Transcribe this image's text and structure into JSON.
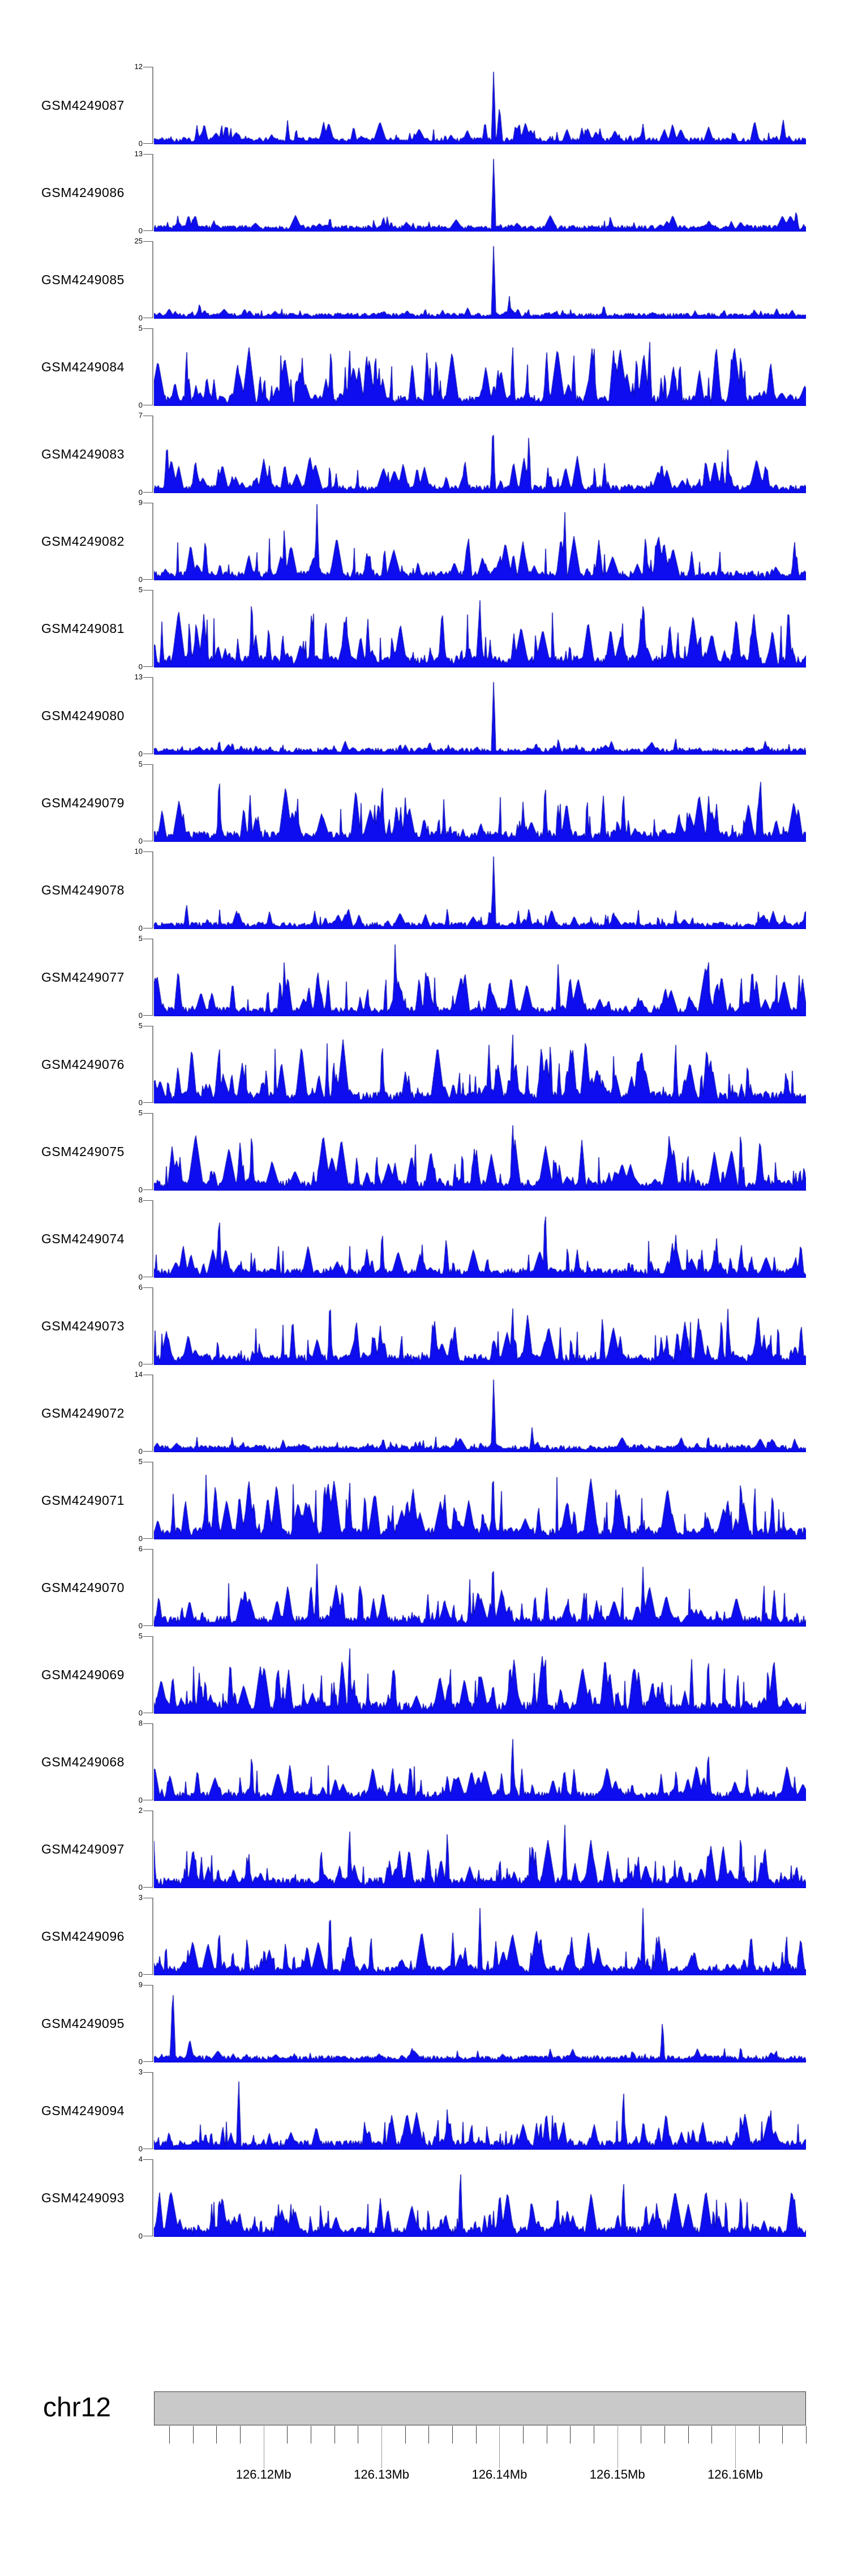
{
  "chart_data": {
    "type": "area",
    "title": "",
    "description": "Stacked genomic signal coverage tracks (GEO GSM samples) over chr12:126.11-126.17Mb",
    "zero_label": "0",
    "signal_color": "#0d0df0",
    "signal_edge_color": "#0000a8",
    "axis_color": "#8c8c8c",
    "ideogram_fill": "#c9c9c9",
    "region": {
      "chrom": "chr12",
      "start_mb": 126.1107,
      "end_mb": 126.166
    },
    "panels": [
      {
        "label": "GSM4249087",
        "ymax": 12,
        "seed": 101,
        "count": 115,
        "typ": 0.22,
        "base": 0.05,
        "peaks": [
          {
            "x": 0.521,
            "h": 1,
            "w": 4
          },
          {
            "x": 0.53,
            "h": 0.5,
            "w": 6
          },
          {
            "x": 0.56,
            "h": 0.3,
            "w": 5
          },
          {
            "x": 0.205,
            "h": 0.32,
            "w": 4
          },
          {
            "x": 0.112,
            "h": 0.28,
            "w": 4
          },
          {
            "x": 0.75,
            "h": 0.26,
            "w": 5
          },
          {
            "x": 0.965,
            "h": 0.33,
            "w": 6
          }
        ]
      },
      {
        "label": "GSM4249086",
        "ymax": 13,
        "seed": 202,
        "count": 115,
        "typ": 0.16,
        "base": 0.045,
        "peaks": [
          {
            "x": 0.521,
            "h": 1,
            "w": 4
          },
          {
            "x": 0.06,
            "h": 0.2,
            "w": 4
          },
          {
            "x": 0.27,
            "h": 0.2,
            "w": 4
          },
          {
            "x": 0.7,
            "h": 0.2,
            "w": 4
          },
          {
            "x": 0.985,
            "h": 0.28,
            "w": 5
          }
        ]
      },
      {
        "label": "GSM4249085",
        "ymax": 25,
        "seed": 303,
        "count": 105,
        "typ": 0.1,
        "base": 0.04,
        "peaks": [
          {
            "x": 0.521,
            "h": 1,
            "w": 4
          },
          {
            "x": 0.07,
            "h": 0.2,
            "w": 5
          },
          {
            "x": 0.545,
            "h": 0.3,
            "w": 4
          },
          {
            "x": 0.69,
            "h": 0.18,
            "w": 5
          },
          {
            "x": 0.83,
            "h": 0.1,
            "w": 6
          }
        ]
      },
      {
        "label": "GSM4249084",
        "ymax": 5,
        "seed": 404,
        "count": 155,
        "typ": 0.58,
        "base": 0.08,
        "peaks": [
          {
            "x": 0.05,
            "h": 0.78,
            "w": 4
          },
          {
            "x": 0.3,
            "h": 0.8,
            "w": 4
          },
          {
            "x": 0.55,
            "h": 0.85,
            "w": 4
          },
          {
            "x": 0.76,
            "h": 0.95,
            "w": 4
          },
          {
            "x": 0.9,
            "h": 0.78,
            "w": 4
          }
        ]
      },
      {
        "label": "GSM4249083",
        "ymax": 7,
        "seed": 505,
        "count": 135,
        "typ": 0.34,
        "base": 0.06,
        "peaks": [
          {
            "x": 0.02,
            "h": 0.7,
            "w": 5
          },
          {
            "x": 0.52,
            "h": 1,
            "w": 4
          },
          {
            "x": 0.575,
            "h": 0.8,
            "w": 4
          },
          {
            "x": 0.88,
            "h": 0.6,
            "w": 4
          }
        ]
      },
      {
        "label": "GSM4249082",
        "ymax": 9,
        "seed": 606,
        "count": 135,
        "typ": 0.42,
        "base": 0.07,
        "peaks": [
          {
            "x": 0.2,
            "h": 0.72,
            "w": 4
          },
          {
            "x": 0.25,
            "h": 1,
            "w": 4
          },
          {
            "x": 0.63,
            "h": 0.95,
            "w": 4
          },
          {
            "x": 0.77,
            "h": 0.6,
            "w": 4
          }
        ]
      },
      {
        "label": "GSM4249081",
        "ymax": 5,
        "seed": 707,
        "count": 165,
        "typ": 0.58,
        "base": 0.09,
        "peaks": [
          {
            "x": 0.15,
            "h": 1,
            "w": 4
          },
          {
            "x": 0.5,
            "h": 0.88,
            "w": 4
          },
          {
            "x": 0.75,
            "h": 0.8,
            "w": 4
          }
        ]
      },
      {
        "label": "GSM4249080",
        "ymax": 13,
        "seed": 808,
        "count": 115,
        "typ": 0.13,
        "base": 0.05,
        "peaks": [
          {
            "x": 0.521,
            "h": 1,
            "w": 4
          },
          {
            "x": 0.1,
            "h": 0.2,
            "w": 4
          },
          {
            "x": 0.62,
            "h": 0.2,
            "w": 4
          },
          {
            "x": 0.8,
            "h": 0.22,
            "w": 4
          }
        ]
      },
      {
        "label": "GSM4249079",
        "ymax": 5,
        "seed": 909,
        "count": 145,
        "typ": 0.52,
        "base": 0.08,
        "peaks": [
          {
            "x": 0.1,
            "h": 0.95,
            "w": 4
          },
          {
            "x": 0.35,
            "h": 0.88,
            "w": 4
          },
          {
            "x": 0.6,
            "h": 0.85,
            "w": 4
          },
          {
            "x": 0.93,
            "h": 0.9,
            "w": 5
          }
        ]
      },
      {
        "label": "GSM4249078",
        "ymax": 10,
        "seed": 1010,
        "count": 125,
        "typ": 0.2,
        "base": 0.05,
        "peaks": [
          {
            "x": 0.521,
            "h": 1,
            "w": 4
          },
          {
            "x": 0.05,
            "h": 0.33,
            "w": 5
          },
          {
            "x": 0.45,
            "h": 0.28,
            "w": 4
          },
          {
            "x": 0.8,
            "h": 0.26,
            "w": 4
          }
        ]
      },
      {
        "label": "GSM4249077",
        "ymax": 5,
        "seed": 1111,
        "count": 145,
        "typ": 0.46,
        "base": 0.07,
        "peaks": [
          {
            "x": 0.2,
            "h": 0.78,
            "w": 4
          },
          {
            "x": 0.37,
            "h": 1,
            "w": 4
          },
          {
            "x": 0.62,
            "h": 0.72,
            "w": 4
          },
          {
            "x": 0.85,
            "h": 0.88,
            "w": 4
          }
        ]
      },
      {
        "label": "GSM4249076",
        "ymax": 5,
        "seed": 1212,
        "count": 165,
        "typ": 0.6,
        "base": 0.09,
        "peaks": [
          {
            "x": 0.1,
            "h": 0.88,
            "w": 4
          },
          {
            "x": 0.35,
            "h": 0.9,
            "w": 4
          },
          {
            "x": 0.55,
            "h": 1,
            "w": 4
          },
          {
            "x": 0.8,
            "h": 0.85,
            "w": 4
          }
        ]
      },
      {
        "label": "GSM4249075",
        "ymax": 5,
        "seed": 1313,
        "count": 155,
        "typ": 0.52,
        "base": 0.08,
        "peaks": [
          {
            "x": 0.15,
            "h": 0.85,
            "w": 4
          },
          {
            "x": 0.55,
            "h": 0.95,
            "w": 4
          },
          {
            "x": 0.9,
            "h": 0.88,
            "w": 4
          }
        ]
      },
      {
        "label": "GSM4249074",
        "ymax": 8,
        "seed": 1414,
        "count": 135,
        "typ": 0.38,
        "base": 0.07,
        "peaks": [
          {
            "x": 0.1,
            "h": 0.9,
            "w": 4
          },
          {
            "x": 0.35,
            "h": 0.68,
            "w": 4
          },
          {
            "x": 0.6,
            "h": 1,
            "w": 4
          },
          {
            "x": 0.8,
            "h": 0.62,
            "w": 4
          }
        ]
      },
      {
        "label": "GSM4249073",
        "ymax": 6,
        "seed": 1515,
        "count": 145,
        "typ": 0.48,
        "base": 0.08,
        "peaks": [
          {
            "x": 0.27,
            "h": 0.95,
            "w": 4
          },
          {
            "x": 0.55,
            "h": 0.82,
            "w": 4
          },
          {
            "x": 0.88,
            "h": 0.78,
            "w": 4
          }
        ]
      },
      {
        "label": "GSM4249072",
        "ymax": 14,
        "seed": 1616,
        "count": 115,
        "typ": 0.14,
        "base": 0.05,
        "peaks": [
          {
            "x": 0.521,
            "h": 1,
            "w": 4
          },
          {
            "x": 0.12,
            "h": 0.2,
            "w": 4
          },
          {
            "x": 0.58,
            "h": 0.33,
            "w": 4
          },
          {
            "x": 0.85,
            "h": 0.23,
            "w": 4
          }
        ]
      },
      {
        "label": "GSM4249071",
        "ymax": 5,
        "seed": 1717,
        "count": 165,
        "typ": 0.58,
        "base": 0.09,
        "peaks": [
          {
            "x": 0.08,
            "h": 0.88,
            "w": 4
          },
          {
            "x": 0.3,
            "h": 0.82,
            "w": 4
          },
          {
            "x": 0.52,
            "h": 1,
            "w": 4
          },
          {
            "x": 0.9,
            "h": 0.88,
            "w": 4
          }
        ]
      },
      {
        "label": "GSM4249070",
        "ymax": 6,
        "seed": 1818,
        "count": 145,
        "typ": 0.46,
        "base": 0.08,
        "peaks": [
          {
            "x": 0.25,
            "h": 0.82,
            "w": 4
          },
          {
            "x": 0.52,
            "h": 0.95,
            "w": 4
          },
          {
            "x": 0.75,
            "h": 0.78,
            "w": 4
          }
        ]
      },
      {
        "label": "GSM4249069",
        "ymax": 5,
        "seed": 1919,
        "count": 165,
        "typ": 0.56,
        "base": 0.09,
        "peaks": [
          {
            "x": 0.3,
            "h": 0.95,
            "w": 4
          },
          {
            "x": 0.6,
            "h": 0.88,
            "w": 4
          },
          {
            "x": 0.85,
            "h": 0.82,
            "w": 4
          }
        ]
      },
      {
        "label": "GSM4249068",
        "ymax": 8,
        "seed": 2020,
        "count": 135,
        "typ": 0.36,
        "base": 0.07,
        "peaks": [
          {
            "x": 0.15,
            "h": 0.68,
            "w": 4
          },
          {
            "x": 0.55,
            "h": 0.9,
            "w": 4
          },
          {
            "x": 0.85,
            "h": 0.72,
            "w": 4
          }
        ]
      },
      {
        "label": "GSM4249097",
        "ymax": 2,
        "seed": 2121,
        "count": 155,
        "typ": 0.48,
        "base": 0.08,
        "peaks": [
          {
            "x": 0.3,
            "h": 0.82,
            "w": 4
          },
          {
            "x": 0.45,
            "h": 0.78,
            "w": 4
          },
          {
            "x": 0.63,
            "h": 0.88,
            "w": 4
          },
          {
            "x": 0.9,
            "h": 0.78,
            "w": 4
          }
        ]
      },
      {
        "label": "GSM4249096",
        "ymax": 3,
        "seed": 2222,
        "count": 135,
        "typ": 0.42,
        "base": 0.07,
        "peaks": [
          {
            "x": 0.1,
            "h": 0.62,
            "w": 5
          },
          {
            "x": 0.27,
            "h": 0.95,
            "w": 4
          },
          {
            "x": 0.5,
            "h": 0.88,
            "w": 4
          },
          {
            "x": 0.75,
            "h": 0.88,
            "w": 4
          },
          {
            "x": 0.97,
            "h": 0.58,
            "w": 4
          }
        ]
      },
      {
        "label": "GSM4249095",
        "ymax": 9,
        "seed": 2323,
        "count": 115,
        "typ": 0.13,
        "base": 0.05,
        "peaks": [
          {
            "x": 0.029,
            "h": 1,
            "w": 5
          },
          {
            "x": 0.055,
            "h": 0.3,
            "w": 8
          },
          {
            "x": 0.78,
            "h": 0.58,
            "w": 4
          },
          {
            "x": 0.4,
            "h": 0.18,
            "w": 4
          },
          {
            "x": 0.9,
            "h": 0.22,
            "w": 4
          }
        ]
      },
      {
        "label": "GSM4249094",
        "ymax": 3,
        "seed": 2424,
        "count": 135,
        "typ": 0.36,
        "base": 0.07,
        "peaks": [
          {
            "x": 0.13,
            "h": 0.95,
            "w": 4
          },
          {
            "x": 0.45,
            "h": 0.58,
            "w": 4
          },
          {
            "x": 0.72,
            "h": 0.85,
            "w": 4
          },
          {
            "x": 0.9,
            "h": 0.52,
            "w": 4
          }
        ]
      },
      {
        "label": "GSM4249093",
        "ymax": 4,
        "seed": 2525,
        "count": 145,
        "typ": 0.44,
        "base": 0.08,
        "peaks": [
          {
            "x": 0.1,
            "h": 0.58,
            "w": 4
          },
          {
            "x": 0.47,
            "h": 0.95,
            "w": 4
          },
          {
            "x": 0.72,
            "h": 0.8,
            "w": 4
          },
          {
            "x": 0.9,
            "h": 0.62,
            "w": 4
          }
        ]
      }
    ],
    "x_axis": {
      "chrom": "chr12",
      "major_ticks": [
        {
          "mb": 126.12,
          "label": "126.12Mb"
        },
        {
          "mb": 126.13,
          "label": "126.13Mb"
        },
        {
          "mb": 126.14,
          "label": "126.14Mb"
        },
        {
          "mb": 126.15,
          "label": "126.15Mb"
        },
        {
          "mb": 126.16,
          "label": "126.16Mb"
        }
      ],
      "minor_ticks_mb": [
        126.112,
        126.114,
        126.116,
        126.118,
        126.122,
        126.124,
        126.126,
        126.128,
        126.132,
        126.134,
        126.136,
        126.138,
        126.142,
        126.144,
        126.146,
        126.148,
        126.152,
        126.154,
        126.156,
        126.158,
        126.162,
        126.164,
        126.166
      ]
    }
  }
}
